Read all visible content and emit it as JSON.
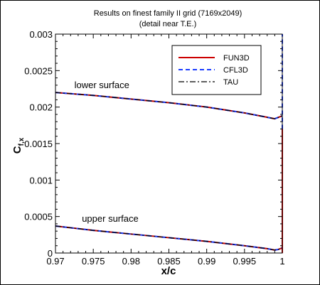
{
  "chart_data": {
    "type": "line",
    "title": "Results on finest family II grid (7169x2049)",
    "subtitle": "(detail near T.E.)",
    "xlabel": "x/c",
    "ylabel_main": "C",
    "ylabel_sub": "f,x",
    "xlim": [
      0.97,
      1.0
    ],
    "ylim": [
      0,
      0.003
    ],
    "x_ticks": [
      0.97,
      0.975,
      0.98,
      0.985,
      0.99,
      0.995,
      1
    ],
    "x_tick_labels": [
      "0.97",
      "0.975",
      "0.98",
      "0.985",
      "0.99",
      "0.995",
      "1"
    ],
    "y_ticks": [
      0,
      0.0005,
      0.001,
      0.0015,
      0.002,
      0.0025,
      0.003
    ],
    "y_tick_labels": [
      "0",
      "0.0005",
      "0.001",
      "0.0015",
      "0.002",
      "0.0025",
      "0.003"
    ],
    "grid": false,
    "legend_position": "top-right",
    "annotations": [
      {
        "text": "lower surface",
        "x": 0.9725,
        "y": 0.0022
      },
      {
        "text": "upper surface",
        "x": 0.9735,
        "y": 0.00037
      }
    ],
    "series": [
      {
        "name": "FUN3D",
        "color": "#cc0000",
        "dash": "solid",
        "lower": {
          "x": [
            0.97,
            0.975,
            0.98,
            0.985,
            0.99,
            0.995,
            0.998,
            0.999,
            0.9995,
            1.0
          ],
          "y": [
            0.0022,
            0.00216,
            0.00211,
            0.00206,
            0.002,
            0.00192,
            0.00186,
            0.00184,
            0.00186,
            0.00188
          ]
        },
        "upper": {
          "x": [
            0.97,
            0.975,
            0.98,
            0.985,
            0.99,
            0.995,
            0.998,
            0.999,
            0.9995,
            1.0
          ],
          "y": [
            0.00037,
            0.00031,
            0.00026,
            0.00021,
            0.00016,
            0.0001,
            6e-05,
            4e-05,
            5e-05,
            7e-05
          ]
        },
        "te_vertical": {
          "x": 1.0,
          "y": [
            0,
            0.0017
          ]
        }
      },
      {
        "name": "CFL3D",
        "color": "#1a3cff",
        "dash": "dashed",
        "lower": {
          "x": [
            0.97,
            0.975,
            0.98,
            0.985,
            0.99,
            0.995,
            0.998,
            0.999,
            0.9995,
            1.0
          ],
          "y": [
            0.0022,
            0.00216,
            0.00211,
            0.00206,
            0.002,
            0.00192,
            0.00186,
            0.00184,
            0.00186,
            0.00188
          ]
        },
        "upper": {
          "x": [
            0.97,
            0.975,
            0.98,
            0.985,
            0.99,
            0.995,
            0.998,
            0.999,
            0.9995,
            1.0
          ],
          "y": [
            0.00037,
            0.00031,
            0.00026,
            0.00021,
            0.00016,
            0.0001,
            6e-05,
            4e-05,
            5e-05,
            7e-05
          ]
        },
        "te_vertical": {
          "x": 1.0,
          "y": [
            0.0017,
            0.003
          ]
        }
      },
      {
        "name": "TAU",
        "color": "#000000",
        "dash": "dashdot",
        "lower": {
          "x": [
            0.97,
            0.975,
            0.98,
            0.985,
            0.99,
            0.995,
            0.998,
            0.999,
            0.9995,
            1.0
          ],
          "y": [
            0.0022,
            0.00216,
            0.00211,
            0.00206,
            0.002,
            0.00192,
            0.00186,
            0.00184,
            0.00186,
            0.00188
          ]
        },
        "upper": {
          "x": [
            0.97,
            0.975,
            0.98,
            0.985,
            0.99,
            0.995,
            0.998,
            0.999,
            0.9995,
            1.0
          ],
          "y": [
            0.00037,
            0.00031,
            0.00026,
            0.00021,
            0.00016,
            0.0001,
            6e-05,
            4e-05,
            5e-05,
            7e-05
          ]
        }
      }
    ]
  }
}
